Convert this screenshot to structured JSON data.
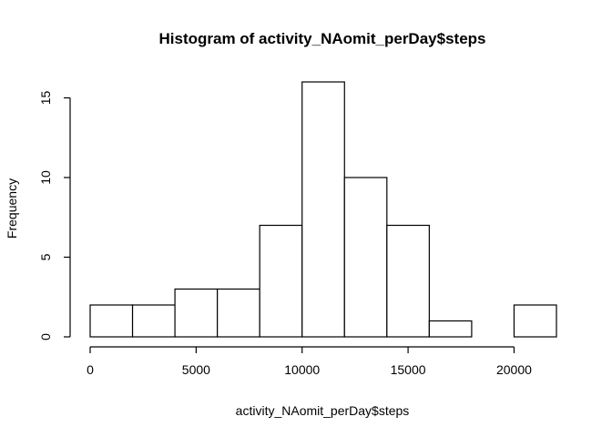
{
  "chart_data": {
    "type": "bar",
    "title": "Histogram of activity_NAomit_perDay$steps",
    "xlabel": "activity_NAomit_perDay$steps",
    "ylabel": "Frequency",
    "bins": [
      {
        "start": 0,
        "end": 2000,
        "count": 2
      },
      {
        "start": 2000,
        "end": 4000,
        "count": 2
      },
      {
        "start": 4000,
        "end": 6000,
        "count": 3
      },
      {
        "start": 6000,
        "end": 8000,
        "count": 3
      },
      {
        "start": 8000,
        "end": 10000,
        "count": 7
      },
      {
        "start": 10000,
        "end": 12000,
        "count": 16
      },
      {
        "start": 12000,
        "end": 14000,
        "count": 10
      },
      {
        "start": 14000,
        "end": 16000,
        "count": 7
      },
      {
        "start": 16000,
        "end": 18000,
        "count": 1
      },
      {
        "start": 18000,
        "end": 20000,
        "count": 0
      },
      {
        "start": 20000,
        "end": 22000,
        "count": 2
      }
    ],
    "x_ticks": [
      "0",
      "5000",
      "10000",
      "15000",
      "20000"
    ],
    "y_ticks": [
      "0",
      "5",
      "10",
      "15"
    ],
    "xlim": [
      0,
      22000
    ],
    "ylim": [
      0,
      16
    ],
    "grid": false,
    "legend": "none"
  }
}
